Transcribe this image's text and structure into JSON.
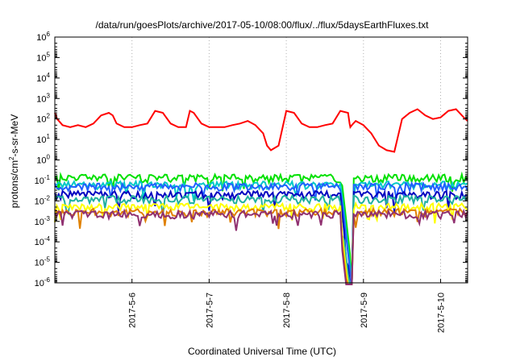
{
  "chart_data": {
    "type": "line",
    "title": "/data/run/goesPlots/archive/2017-05-10/08:00/flux/../flux/5daysEarthFluxes.txt",
    "xlabel": "Coordinated Universal Time (UTC)",
    "ylabel": {
      "pre": "protons/cm",
      "sup": "2",
      "post": "-s-sr-MeV"
    },
    "yscale": "log",
    "ylim": [
      1e-06,
      1000000.0
    ],
    "xlim": [
      2017.0501,
      2017.0536
    ],
    "y_ticks": [
      {
        "base": "10",
        "exp": "6",
        "v": 6
      },
      {
        "base": "10",
        "exp": "5",
        "v": 5
      },
      {
        "base": "10",
        "exp": "4",
        "v": 4
      },
      {
        "base": "10",
        "exp": "3",
        "v": 3
      },
      {
        "base": "10",
        "exp": "2",
        "v": 2
      },
      {
        "base": "10",
        "exp": "1",
        "v": 1
      },
      {
        "base": "10",
        "exp": "0",
        "v": 0
      },
      {
        "base": "10",
        "exp": "-1",
        "v": -1
      },
      {
        "base": "10",
        "exp": "-2",
        "v": -2
      },
      {
        "base": "10",
        "exp": "-3",
        "v": -3
      },
      {
        "base": "10",
        "exp": "-4",
        "v": -4
      },
      {
        "base": "10",
        "exp": "-5",
        "v": -5
      },
      {
        "base": "10",
        "exp": "-6",
        "v": -6
      }
    ],
    "x_ticks": [
      {
        "label": "2017-5-6",
        "day": 6
      },
      {
        "label": "2017-5-7",
        "day": 7
      },
      {
        "label": "2017-5-8",
        "day": 8
      },
      {
        "label": "2017-5-9",
        "day": 9
      },
      {
        "label": "2017-5-10",
        "day": 10
      }
    ],
    "x_range_days": [
      5.0,
      10.35
    ],
    "grid": "vertical dotted at day ticks",
    "series": [
      {
        "color": "#ff0000",
        "x": [
          5.0,
          5.03,
          5.1,
          5.2,
          5.3,
          5.4,
          5.5,
          5.6,
          5.7,
          5.75,
          5.8,
          5.9,
          6.0,
          6.1,
          6.2,
          6.3,
          6.4,
          6.5,
          6.6,
          6.7,
          6.75,
          6.8,
          6.9,
          7.0,
          7.1,
          7.2,
          7.3,
          7.4,
          7.5,
          7.6,
          7.7,
          7.75,
          7.8,
          7.9,
          8.0,
          8.1,
          8.2,
          8.3,
          8.4,
          8.5,
          8.6,
          8.7,
          8.8,
          8.82,
          8.83,
          8.85,
          8.9,
          9.0,
          9.1,
          9.2,
          9.3,
          9.4,
          9.5,
          9.6,
          9.7,
          9.8,
          9.9,
          10.0,
          10.1,
          10.2,
          10.3,
          10.35
        ],
        "y": [
          200,
          100,
          50,
          40,
          50,
          40,
          60,
          150,
          200,
          150,
          60,
          40,
          40,
          50,
          60,
          250,
          200,
          60,
          40,
          40,
          250,
          200,
          60,
          40,
          40,
          40,
          50,
          60,
          80,
          50,
          20,
          5,
          3,
          5,
          250,
          200,
          60,
          40,
          40,
          50,
          60,
          250,
          200,
          60,
          40,
          50,
          80,
          50,
          20,
          5,
          3,
          2.5,
          100,
          200,
          300,
          150,
          100,
          120,
          250,
          300,
          120,
          80
        ]
      },
      {
        "color": "#00e000",
        "level": 0.13
      },
      {
        "color": "#00c8c8",
        "level": 0.06
      },
      {
        "color": "#2060ff",
        "level": 0.05
      },
      {
        "color": "#0000c0",
        "level": 0.02
      },
      {
        "color": "#20b0a0",
        "level": 0.012
      },
      {
        "color": "#ffff00",
        "level": 0.005
      },
      {
        "color": "#e08000",
        "level": 0.0028
      },
      {
        "color": "#903070",
        "level": 0.0022
      }
    ],
    "dropout_day": 8.72
  }
}
